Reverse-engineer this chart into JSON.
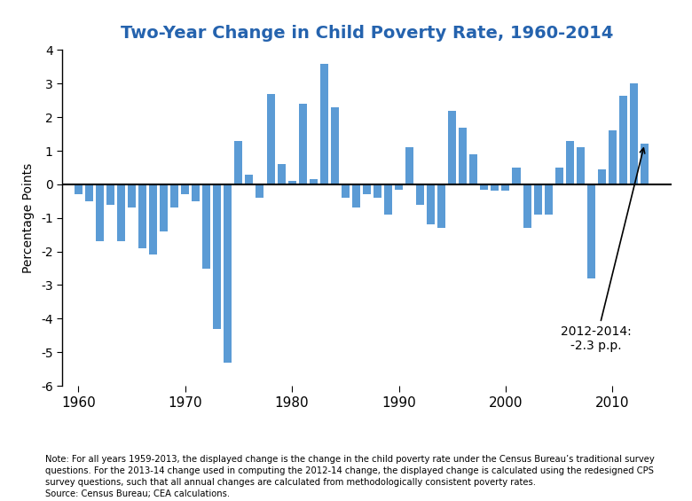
{
  "title": "Two-Year Change in Child Poverty Rate, 1960-2014",
  "ylabel": "Percentage Points",
  "bar_color": "#5b9bd5",
  "background_color": "#ffffff",
  "ylim": [
    -6,
    4
  ],
  "yticks": [
    -6,
    -5,
    -4,
    -3,
    -2,
    -1,
    0,
    1,
    2,
    3,
    4
  ],
  "xticks": [
    1960,
    1970,
    1980,
    1990,
    2000,
    2010
  ],
  "annotation_text": "2012-2014:\n-2.3 p.p.",
  "note_text": "Note: For all years 1959-2013, the displayed change is the change in the child poverty rate under the Census Bureau’s traditional survey\nquestions. For the 2013-14 change used in computing the 2012-14 change, the displayed change is calculated using the redesigned CPS\nsurvey questions, such that all annual changes are calculated from methodologically consistent poverty rates.\nSource: Census Bureau; CEA calculations.",
  "years": [
    1960,
    1961,
    1962,
    1963,
    1964,
    1965,
    1966,
    1967,
    1968,
    1969,
    1970,
    1971,
    1972,
    1973,
    1974,
    1975,
    1976,
    1977,
    1978,
    1979,
    1980,
    1981,
    1982,
    1983,
    1984,
    1985,
    1986,
    1987,
    1988,
    1989,
    1990,
    1991,
    1992,
    1993,
    1994,
    1995,
    1996,
    1997,
    1998,
    1999,
    2000,
    2001,
    2002,
    2003,
    2004,
    2005,
    2006,
    2007,
    2008,
    2009,
    2010,
    2011,
    2012,
    2013
  ],
  "values": [
    -0.3,
    -0.5,
    -1.7,
    -0.6,
    -1.7,
    -0.7,
    -1.9,
    -2.1,
    -1.4,
    -0.7,
    -0.3,
    -0.5,
    -2.5,
    -4.3,
    -5.3,
    1.3,
    0.3,
    -0.4,
    2.7,
    0.6,
    0.1,
    2.4,
    0.15,
    3.6,
    2.3,
    -0.4,
    -0.7,
    -0.3,
    -0.4,
    -0.9,
    -0.15,
    1.1,
    -0.6,
    -1.2,
    -1.3,
    2.2,
    1.7,
    0.9,
    -0.15,
    -0.2,
    -0.2,
    0.5,
    -1.3,
    -0.9,
    -0.9,
    0.5,
    1.3,
    1.1,
    -2.8,
    0.45,
    1.6,
    2.65,
    3.0,
    1.2
  ]
}
